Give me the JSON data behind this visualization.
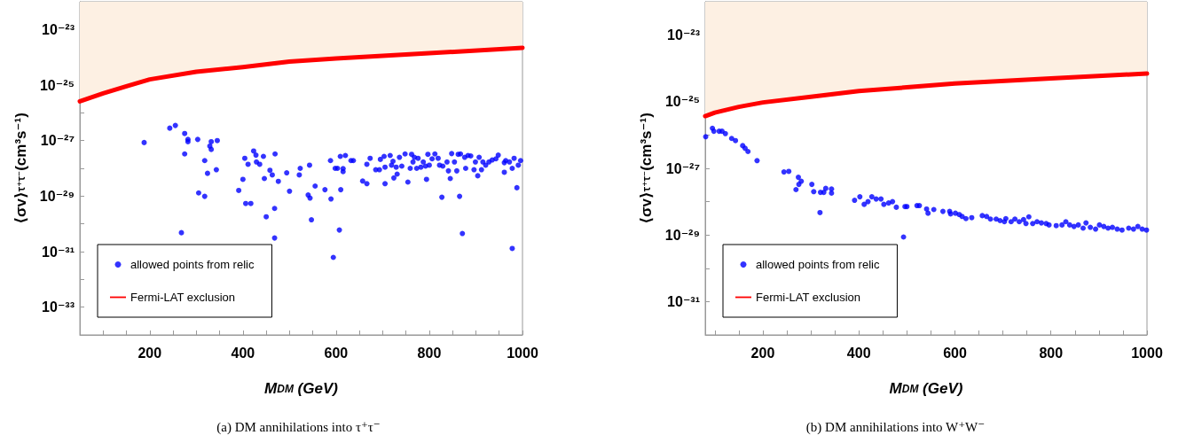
{
  "chart_data": [
    {
      "type": "scatter",
      "title": "(a) DM annihilations into τ⁺τ⁻",
      "xlabel": "M$_{DM}$ (GeV)",
      "ylabel": "⟨σv⟩$_{τ⁺τ⁻}$(cm³s⁻¹)",
      "legend": "bottom left",
      "log": "y",
      "xlim": [
        50,
        1000
      ],
      "ylim": [
        1e-34,
        1e-22
      ],
      "xticks": [
        {
          "value": 100,
          "label": null
        },
        {
          "value": 150,
          "label": null
        },
        200,
        {
          "value": 250,
          "label": null
        },
        {
          "value": 300,
          "label": null
        },
        {
          "value": 350,
          "label": null
        },
        400,
        {
          "value": 450,
          "label": null
        },
        {
          "value": 500,
          "label": null
        },
        {
          "value": 550,
          "label": null
        },
        600,
        {
          "value": 650,
          "label": null
        },
        {
          "value": 700,
          "label": null
        },
        {
          "value": 750,
          "label": null
        },
        800,
        {
          "value": 850,
          "label": null
        },
        {
          "value": 900,
          "label": null
        },
        {
          "value": 950,
          "label": null
        },
        1000
      ],
      "yticks": [
        {
          "value": 1e-33,
          "label": "10⁻³³"
        },
        {
          "value": 1e-32,
          "label": null
        },
        {
          "value": 1e-31,
          "label": "10⁻³¹"
        },
        {
          "value": 1e-30,
          "label": null
        },
        {
          "value": 1e-29,
          "label": "10⁻²⁹"
        },
        {
          "value": 1e-28,
          "label": null
        },
        {
          "value": 1e-27,
          "label": "10⁻²⁷"
        },
        {
          "value": 1e-26,
          "label": null
        },
        {
          "value": 1e-25,
          "label": "10⁻²⁵"
        },
        {
          "value": 1e-24,
          "label": null
        },
        {
          "value": 1e-23,
          "label": "10⁻²³"
        }
      ],
      "series": [
        {
          "name": "allowed points from relic",
          "type": "scatter",
          "color": "#0000ff",
          "marker": "circle",
          "x": [
            188,
            243,
            255,
            275,
            282,
            282,
            303,
            332,
            345,
            329,
            332,
            275,
            318,
            324,
            343,
            305,
            318,
            268,
            391,
            400,
            404,
            411,
            423,
            428,
            429,
            436,
            444,
            469,
            458,
            463,
            446,
            476,
            494,
            500,
            406,
            417,
            468,
            450,
            468,
            521,
            523,
            543,
            540,
            544,
            547,
            555,
            576,
            589,
            588,
            598,
            603,
            609,
            615,
            615,
            610,
            607,
            594,
            620,
            632,
            637,
            657,
            666,
            666,
            673,
            685,
            693,
            695,
            703,
            705,
            705,
            716,
            719,
            722,
            724,
            729,
            731,
            736,
            741,
            748,
            754,
            759,
            762,
            765,
            768,
            773,
            776,
            782,
            787,
            792,
            794,
            797,
            800,
            806,
            812,
            819,
            822,
            827,
            829,
            838,
            841,
            845,
            848,
            854,
            859,
            862,
            865,
            867,
            871,
            876,
            878,
            883,
            889,
            896,
            899,
            904,
            907,
            912,
            915,
            921,
            928,
            935,
            943,
            948,
            961,
            961,
            964,
            972,
            978,
            978,
            982,
            988,
            991,
            996
          ],
          "values": [
            8.5e-28,
            2.8e-27,
            3.5e-27,
            1.8e-27,
            1.1e-27,
            9.1e-28,
            1.1e-27,
            9.1e-28,
            1e-27,
            6.3e-28,
            4.8e-28,
            3.3e-28,
            1.9e-28,
            6.6e-29,
            8.9e-29,
            1.3e-29,
            9.8e-30,
            4.8e-31,
            1.6e-29,
            4e-29,
            2.3e-28,
            1.4e-28,
            4.2e-28,
            3e-28,
            1.7e-28,
            1.4e-28,
            2.7e-28,
            3.3e-28,
            8.5e-29,
            5.8e-29,
            4.3e-29,
            3.4e-29,
            6.9e-29,
            1.5e-29,
            5.4e-30,
            5.4e-30,
            3.6e-30,
            1.8e-30,
            3.1e-31,
            5.8e-29,
            1e-28,
            1.3e-28,
            1.1e-29,
            8.5e-30,
            1.4e-30,
            2.3e-29,
            1.7e-29,
            7.9e-30,
            1.9e-28,
            1e-28,
            1e-28,
            2.7e-28,
            9.8e-29,
            7.6e-29,
            1.7e-29,
            6e-31,
            6.2e-32,
            2.9e-28,
            1.9e-28,
            1.9e-28,
            3.5e-29,
            2.8e-29,
            1.4e-28,
            2.3e-28,
            8.9e-29,
            8.9e-29,
            2.1e-28,
            2.7e-28,
            1.1e-28,
            2.8e-29,
            2.9e-28,
            1.3e-28,
            1.8e-28,
            4.5e-29,
            1.1e-28,
            6.2e-29,
            2.5e-28,
            1.2e-28,
            3.3e-28,
            3.2e-29,
            1e-28,
            3.2e-28,
            1.7e-28,
            2.5e-28,
            1e-28,
            2.3e-28,
            1.1e-28,
            1.7e-28,
            1.2e-28,
            4e-29,
            3.2e-28,
            1.3e-28,
            2.2e-28,
            3.3e-28,
            2.3e-28,
            1.3e-28,
            9.1e-30,
            1.2e-28,
            1.7e-28,
            8.1e-29,
            4.3e-29,
            3.4e-28,
            1.7e-28,
            8.1e-29,
            3.2e-28,
            9.8e-30,
            3.3e-28,
            4.5e-31,
            2.5e-28,
            1e-28,
            2.9e-28,
            2.8e-28,
            8.9e-29,
            1.7e-28,
            5.4e-29,
            2.5e-28,
            8.9e-29,
            1.7e-28,
            1.3e-28,
            1.7e-28,
            2e-28,
            2.2e-28,
            3e-28,
            1.6e-28,
            7.2e-29,
            1.9e-28,
            1.7e-28,
            1.3e-31,
            1e-28,
            2.3e-28,
            2e-29,
            1.3e-28,
            1.9e-28
          ]
        },
        {
          "name": "Fermi-LAT exclusion",
          "type": "line",
          "color": "#ff0000",
          "line_style": "solid",
          "x": [
            50,
            100,
            150,
            200,
            300,
            400,
            500,
            600,
            800,
            1000
          ],
          "values": [
            2.6e-26,
            5e-26,
            9e-26,
            1.6e-25,
            3e-25,
            4.4e-25,
            7e-25,
            9e-25,
            1.4e-24,
            2.2e-24
          ],
          "lower": [
            2.6e-26,
            5e-26,
            9e-26,
            1.6e-25,
            3e-25,
            4.4e-25,
            7e-25,
            9e-25,
            1.4e-24,
            2.2e-24
          ],
          "upper": [
            1e-22,
            1e-22,
            1e-22,
            1e-22,
            1e-22,
            1e-22,
            1e-22,
            1e-22,
            1e-22,
            1e-22
          ]
        }
      ]
    },
    {
      "type": "scatter",
      "title": "(b) DM annihilations into W⁺W⁻",
      "xlabel": "M$_{DM}$ (GeV)",
      "ylabel": "⟨σv⟩$_{τ⁺τ⁻}$(cm³s⁻¹)",
      "legend": "bottom left",
      "log": "y",
      "xlim": [
        80,
        1000
      ],
      "ylim": [
        1e-32,
        1e-22
      ],
      "xticks": [
        {
          "value": 100,
          "label": null
        },
        {
          "value": 150,
          "label": null
        },
        200,
        {
          "value": 250,
          "label": null
        },
        {
          "value": 300,
          "label": null
        },
        {
          "value": 350,
          "label": null
        },
        400,
        {
          "value": 450,
          "label": null
        },
        {
          "value": 500,
          "label": null
        },
        {
          "value": 550,
          "label": null
        },
        600,
        {
          "value": 650,
          "label": null
        },
        {
          "value": 700,
          "label": null
        },
        {
          "value": 750,
          "label": null
        },
        800,
        {
          "value": 850,
          "label": null
        },
        {
          "value": 900,
          "label": null
        },
        {
          "value": 950,
          "label": null
        },
        1000
      ],
      "yticks": [
        {
          "value": 1e-31,
          "label": "10⁻³¹"
        },
        {
          "value": 1e-30,
          "label": null
        },
        {
          "value": 1e-29,
          "label": "10⁻²⁹"
        },
        {
          "value": 1e-28,
          "label": null
        },
        {
          "value": 1e-27,
          "label": "10⁻²⁷"
        },
        {
          "value": 1e-26,
          "label": null
        },
        {
          "value": 1e-25,
          "label": "10⁻²⁵"
        },
        {
          "value": 1e-24,
          "label": null
        },
        {
          "value": 1e-23,
          "label": "10⁻²³"
        }
      ],
      "series": [
        {
          "name": "allowed points from relic",
          "type": "scatter",
          "color": "#0000ff",
          "marker": "circle",
          "x": [
            81,
            95,
            98,
            109,
            115,
            122,
            135,
            143,
            158,
            163,
            169,
            188,
            244,
            254,
            274,
            280,
            275,
            269,
            302,
            306,
            319,
            320,
            327,
            331,
            343,
            343,
            391,
            402,
            411,
            419,
            427,
            436,
            446,
            452,
            462,
            470,
            478,
            493,
            496,
            500,
            521,
            526,
            541,
            544,
            556,
            575,
            589,
            591,
            601,
            609,
            615,
            623,
            635,
            657,
            666,
            674,
            686,
            694,
            703,
            706,
            717,
            725,
            734,
            743,
            748,
            754,
            762,
            771,
            780,
            790,
            796,
            811,
            823,
            831,
            839,
            848,
            857,
            867,
            873,
            882,
            893,
            901,
            910,
            919,
            928,
            938,
            948,
            962,
            972,
            981,
            990,
            999
          ],
          "values": [
            8.9e-27,
            1.6e-26,
            1.3e-26,
            1.3e-26,
            1.3e-26,
            1.1e-26,
            7.9e-27,
            6.8e-27,
            4.8e-27,
            4e-27,
            3.2e-27,
            1.7e-27,
            7.8e-28,
            8.1e-28,
            5.4e-28,
            4.1e-28,
            3.3e-28,
            2.3e-28,
            3.3e-28,
            2e-28,
            4.7e-29,
            1.9e-28,
            1.9e-28,
            2.5e-28,
            2.4e-28,
            1.8e-28,
            1.1e-28,
            1.4e-28,
            8.3e-29,
            1e-28,
            1.4e-28,
            1.2e-28,
            1.2e-28,
            8.3e-29,
            9.1e-29,
            1e-28,
            6.8e-29,
            8.7e-30,
            7.1e-29,
            7.1e-29,
            7.6e-29,
            7.6e-29,
            6e-29,
            4.5e-29,
            5.8e-29,
            5.1e-29,
            5.1e-29,
            4.3e-29,
            4.5e-29,
            4.1e-29,
            3.6e-29,
            3.1e-29,
            3.3e-29,
            3.8e-29,
            3.6e-29,
            3e-29,
            3e-29,
            2.7e-29,
            2.5e-29,
            3.1e-29,
            2.5e-29,
            3e-29,
            2.5e-29,
            2.9e-29,
            2.2e-29,
            3.5e-29,
            2.2e-29,
            2.5e-29,
            2.3e-29,
            2.2e-29,
            2e-29,
            1.9e-29,
            2e-29,
            2.5e-29,
            2e-29,
            1.8e-29,
            2e-29,
            1.6e-29,
            2.3e-29,
            1.7e-29,
            1.5e-29,
            2e-29,
            1.8e-29,
            1.6e-29,
            1.7e-29,
            1.5e-29,
            1.4e-29,
            1.6e-29,
            1.5e-29,
            1.8e-29,
            1.5e-29,
            1.4e-29
          ]
        },
        {
          "name": "Fermi-LAT exclusion",
          "type": "line",
          "color": "#ff0000",
          "line_style": "solid",
          "x": [
            80,
            100,
            150,
            200,
            300,
            400,
            500,
            600,
            800,
            1000
          ],
          "values": [
            3.7e-26,
            4.7e-26,
            7e-26,
            9.5e-26,
            1.4e-25,
            2.1e-25,
            2.7e-25,
            3.5e-25,
            5e-25,
            7e-25
          ],
          "lower": [
            3.7e-26,
            4.7e-26,
            7e-26,
            9.5e-26,
            1.4e-25,
            2.1e-25,
            2.7e-25,
            3.5e-25,
            5e-25,
            7e-25
          ],
          "upper": [
            1e-22,
            1e-22,
            1e-22,
            1e-22,
            1e-22,
            1e-22,
            1e-22,
            1e-22,
            1e-22,
            1e-22
          ]
        }
      ]
    }
  ]
}
